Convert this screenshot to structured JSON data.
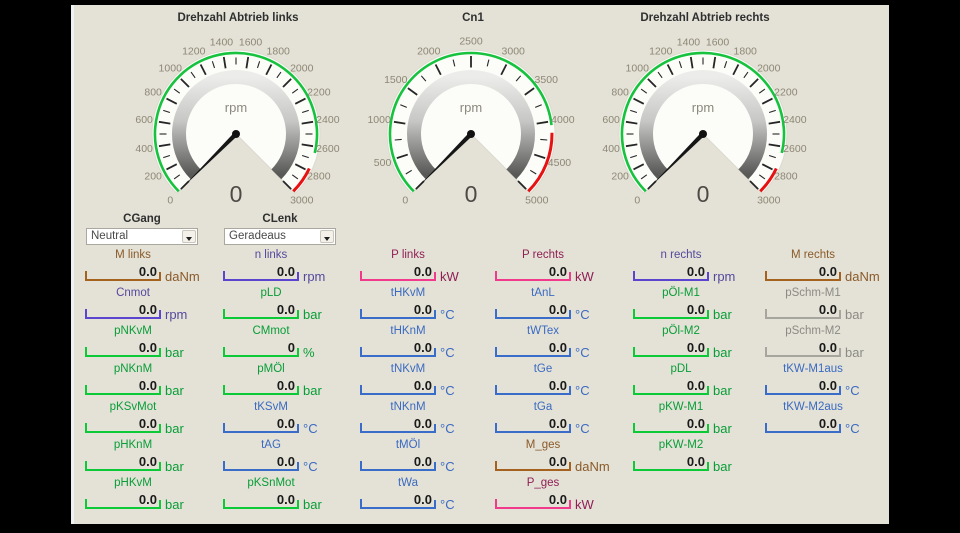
{
  "window": {
    "background": "#000000",
    "panel_background": "#e4e2d6"
  },
  "gauges": [
    {
      "title": "Drehzahl Abtrieb links",
      "unit": "rpm",
      "value": "0",
      "min": 0,
      "max": 3000,
      "label_step": 200,
      "minor_step": 100,
      "green_zone": [
        0,
        2650
      ],
      "red_zone": [
        2780,
        3000
      ],
      "green_color": "#17c23e",
      "red_color": "#e81111"
    },
    {
      "title": "Cn1",
      "unit": "rpm",
      "value": "0",
      "min": 0,
      "max": 5000,
      "label_step": 500,
      "minor_step": 250,
      "green_zone": [
        0,
        4050
      ],
      "red_zone": [
        4150,
        5000
      ],
      "green_color": "#17c23e",
      "red_color": "#e81111"
    },
    {
      "title": "Drehzahl Abtrieb rechts",
      "unit": "rpm",
      "value": "0",
      "min": 0,
      "max": 3000,
      "label_step": 200,
      "minor_step": 100,
      "green_zone": [
        0,
        2650
      ],
      "red_zone": [
        2780,
        3000
      ],
      "green_color": "#17c23e",
      "red_color": "#e81111"
    }
  ],
  "controls": [
    {
      "label": "CGang",
      "value": "Neutral"
    },
    {
      "label": "CLenk",
      "value": "Geradeaus"
    }
  ],
  "palette": {
    "brown": {
      "label": "#8a5a2a",
      "line": "#a5621e"
    },
    "purple": {
      "label": "#55489e",
      "line": "#5a44d0"
    },
    "green": {
      "label": "#089d38",
      "line": "#0cc937"
    },
    "blue": {
      "label": "#3a6ac2",
      "line": "#3a6cca"
    },
    "pink": {
      "label": "#8f1f55",
      "line": "#f23a8c"
    },
    "gray": {
      "label": "#8b8b85",
      "line": "#a6a69e"
    }
  },
  "columns": [
    {
      "fields": [
        {
          "label": "M links",
          "value": "0.0",
          "unit": "daNm",
          "color": "brown"
        },
        {
          "label": "Cnmot",
          "value": "0.0",
          "unit": "rpm",
          "color": "purple"
        },
        {
          "label": "pNKvM",
          "value": "0.0",
          "unit": "bar",
          "color": "green"
        },
        {
          "label": "pNKnM",
          "value": "0.0",
          "unit": "bar",
          "color": "green"
        },
        {
          "label": "pKSvMot",
          "value": "0.0",
          "unit": "bar",
          "color": "green"
        },
        {
          "label": "pHKnM",
          "value": "0.0",
          "unit": "bar",
          "color": "green"
        },
        {
          "label": "pHKvM",
          "value": "0.0",
          "unit": "bar",
          "color": "green"
        }
      ]
    },
    {
      "fields": [
        {
          "label": "n links",
          "value": "0.0",
          "unit": "rpm",
          "color": "purple"
        },
        {
          "label": "pLD",
          "value": "0.0",
          "unit": "bar",
          "color": "green"
        },
        {
          "label": "CMmot",
          "value": "0",
          "unit": "%",
          "color": "green"
        },
        {
          "label": "pMÖl",
          "value": "0.0",
          "unit": "bar",
          "color": "green"
        },
        {
          "label": "tKSvM",
          "value": "0.0",
          "unit": "°C",
          "color": "blue"
        },
        {
          "label": "tAG",
          "value": "0.0",
          "unit": "°C",
          "color": "blue"
        },
        {
          "label": "pKSnMot",
          "value": "0.0",
          "unit": "bar",
          "color": "green"
        }
      ]
    },
    {
      "fields": [
        {
          "label": "P links",
          "value": "0.0",
          "unit": "kW",
          "color": "pink"
        },
        {
          "label": "tHKvM",
          "value": "0.0",
          "unit": "°C",
          "color": "blue"
        },
        {
          "label": "tHKnM",
          "value": "0.0",
          "unit": "°C",
          "color": "blue"
        },
        {
          "label": "tNKvM",
          "value": "0.0",
          "unit": "°C",
          "color": "blue"
        },
        {
          "label": "tNKnM",
          "value": "0.0",
          "unit": "°C",
          "color": "blue"
        },
        {
          "label": "tMÖl",
          "value": "0.0",
          "unit": "°C",
          "color": "blue"
        },
        {
          "label": "tWa",
          "value": "0.0",
          "unit": "°C",
          "color": "blue"
        }
      ]
    },
    {
      "fields": [
        {
          "label": "P rechts",
          "value": "0.0",
          "unit": "kW",
          "color": "pink"
        },
        {
          "label": "tAnL",
          "value": "0.0",
          "unit": "°C",
          "color": "blue"
        },
        {
          "label": "tWTex",
          "value": "0.0",
          "unit": "°C",
          "color": "blue"
        },
        {
          "label": "tGe",
          "value": "0.0",
          "unit": "°C",
          "color": "blue"
        },
        {
          "label": "tGa",
          "value": "0.0",
          "unit": "°C",
          "color": "blue"
        },
        {
          "label": "M_ges",
          "value": "0.0",
          "unit": "daNm",
          "color": "brown"
        },
        {
          "label": "P_ges",
          "value": "0.0",
          "unit": "kW",
          "color": "pink"
        }
      ]
    },
    {
      "fields": [
        {
          "label": "n rechts",
          "value": "0.0",
          "unit": "rpm",
          "color": "purple"
        },
        {
          "label": "pÖl-M1",
          "value": "0.0",
          "unit": "bar",
          "color": "green"
        },
        {
          "label": "pÖl-M2",
          "value": "0.0",
          "unit": "bar",
          "color": "green"
        },
        {
          "label": "pDL",
          "value": "0.0",
          "unit": "bar",
          "color": "green"
        },
        {
          "label": "pKW-M1",
          "value": "0.0",
          "unit": "bar",
          "color": "green"
        },
        {
          "label": "pKW-M2",
          "value": "0.0",
          "unit": "bar",
          "color": "green"
        }
      ]
    },
    {
      "fields": [
        {
          "label": "M rechts",
          "value": "0.0",
          "unit": "daNm",
          "color": "brown"
        },
        {
          "label": "pSchm-M1",
          "value": "0.0",
          "unit": "bar",
          "color": "gray"
        },
        {
          "label": "pSchm-M2",
          "value": "0.0",
          "unit": "bar",
          "color": "gray"
        },
        {
          "label": "tKW-M1aus",
          "value": "0.0",
          "unit": "°C",
          "color": "blue"
        },
        {
          "label": "tKW-M2aus",
          "value": "0.0",
          "unit": "°C",
          "color": "blue"
        }
      ]
    }
  ]
}
